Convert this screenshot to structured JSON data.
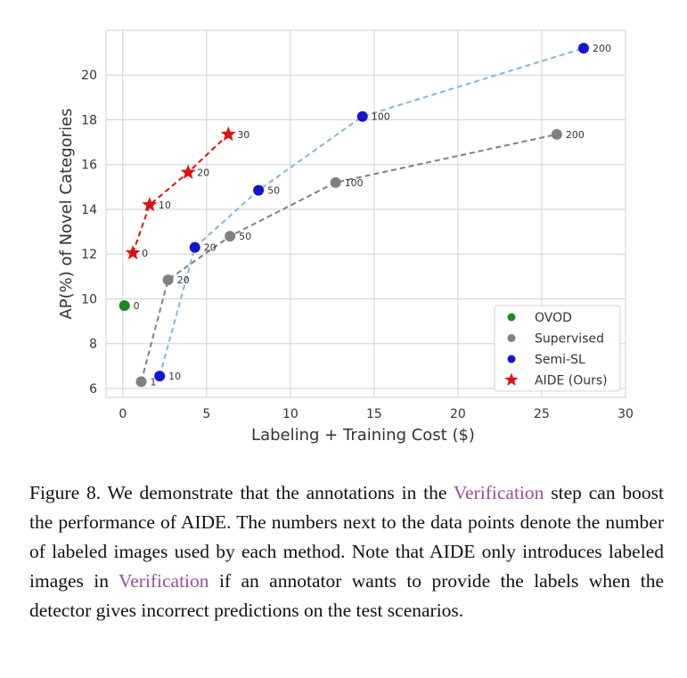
{
  "chart_data": {
    "type": "scatter",
    "title": "",
    "xlabel": "Labeling + Training Cost ($)",
    "ylabel": "AP(%) of Novel Categories",
    "xlim": [
      -1,
      30
    ],
    "ylim": [
      5.6,
      22.0
    ],
    "xticks": [
      "0",
      "5",
      "10",
      "15",
      "20",
      "25",
      "30"
    ],
    "yticks": [
      "6",
      "8",
      "10",
      "12",
      "14",
      "16",
      "18",
      "20"
    ],
    "grid": true,
    "legend_position": "lower-right",
    "series": [
      {
        "name": "OVOD",
        "color": "#1a8a1a",
        "marker": "circle",
        "line": "none",
        "points": [
          {
            "x": 0.1,
            "y": 9.7,
            "label": "0"
          }
        ]
      },
      {
        "name": "Supervised",
        "color": "#808080",
        "marker": "circle",
        "line": "dashed",
        "points": [
          {
            "x": 1.1,
            "y": 6.3,
            "label": "1"
          },
          {
            "x": 2.7,
            "y": 10.85,
            "label": "20"
          },
          {
            "x": 6.4,
            "y": 12.8,
            "label": "50"
          },
          {
            "x": 12.7,
            "y": 15.2,
            "label": "100"
          },
          {
            "x": 25.9,
            "y": 17.35,
            "label": "200"
          }
        ]
      },
      {
        "name": "Semi-SL",
        "color": "#1515cc",
        "line_color": "#87b5d8",
        "marker": "circle",
        "line": "dashed",
        "points": [
          {
            "x": 2.2,
            "y": 6.55,
            "label": "10"
          },
          {
            "x": 4.3,
            "y": 12.3,
            "label": "20"
          },
          {
            "x": 8.1,
            "y": 14.85,
            "label": "50"
          },
          {
            "x": 14.3,
            "y": 18.15,
            "label": "100"
          },
          {
            "x": 27.5,
            "y": 21.2,
            "label": "200"
          }
        ]
      },
      {
        "name": "AIDE (Ours)",
        "color": "#e01010",
        "marker": "star",
        "line": "dashed",
        "points": [
          {
            "x": 0.6,
            "y": 12.05,
            "label": "0"
          },
          {
            "x": 1.6,
            "y": 14.2,
            "label": "10"
          },
          {
            "x": 3.9,
            "y": 15.65,
            "label": "20"
          },
          {
            "x": 6.3,
            "y": 17.35,
            "label": "30"
          }
        ]
      }
    ]
  },
  "caption": {
    "part1": "Figure 8. We demonstrate that the annotations in the ",
    "link1": "Verification",
    "part2": " step can boost the performance of AIDE. The numbers next to the data points denote the number of labeled images used by each method. Note that AIDE only introduces labeled images in ",
    "link2": "Verification",
    "part3": " if an annotator wants to provide the labels when the detector gives incorrect predictions on the test scenarios."
  }
}
